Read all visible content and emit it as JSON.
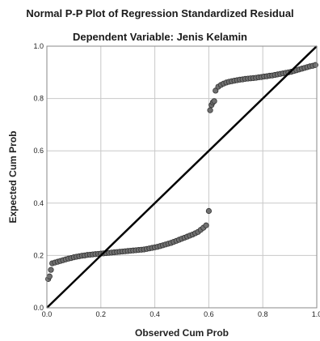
{
  "chart_data": {
    "type": "scatter",
    "title": "Normal P-P Plot of Regression Standardized Residual",
    "subtitle": "Dependent Variable: Jenis Kelamin",
    "xlabel": "Observed Cum Prob",
    "ylabel": "Expected Cum Prob",
    "xlim": [
      0,
      1
    ],
    "ylim": [
      0,
      1
    ],
    "xticks": [
      "0.0",
      "0.2",
      "0.4",
      "0.6",
      "0.8",
      "1.0"
    ],
    "yticks": [
      "0.0",
      "0.2",
      "0.4",
      "0.6",
      "0.8",
      "1.0"
    ],
    "grid": true,
    "reference_line": {
      "from": [
        0,
        0
      ],
      "to": [
        1,
        1
      ]
    },
    "colors": {
      "marker": "#707070",
      "marker_edge": "#333333",
      "line": "#000000",
      "grid": "#c8c8c8"
    },
    "points": [
      [
        0.005,
        0.11
      ],
      [
        0.01,
        0.12
      ],
      [
        0.015,
        0.145
      ],
      [
        0.02,
        0.17
      ],
      [
        0.03,
        0.173
      ],
      [
        0.04,
        0.176
      ],
      [
        0.05,
        0.179
      ],
      [
        0.06,
        0.182
      ],
      [
        0.07,
        0.185
      ],
      [
        0.08,
        0.188
      ],
      [
        0.09,
        0.19
      ],
      [
        0.1,
        0.193
      ],
      [
        0.11,
        0.195
      ],
      [
        0.12,
        0.197
      ],
      [
        0.13,
        0.199
      ],
      [
        0.14,
        0.2
      ],
      [
        0.15,
        0.202
      ],
      [
        0.16,
        0.203
      ],
      [
        0.17,
        0.204
      ],
      [
        0.18,
        0.205
      ],
      [
        0.19,
        0.206
      ],
      [
        0.2,
        0.207
      ],
      [
        0.21,
        0.208
      ],
      [
        0.22,
        0.209
      ],
      [
        0.23,
        0.21
      ],
      [
        0.24,
        0.211
      ],
      [
        0.25,
        0.212
      ],
      [
        0.26,
        0.213
      ],
      [
        0.27,
        0.214
      ],
      [
        0.28,
        0.215
      ],
      [
        0.29,
        0.216
      ],
      [
        0.3,
        0.217
      ],
      [
        0.31,
        0.218
      ],
      [
        0.32,
        0.219
      ],
      [
        0.33,
        0.22
      ],
      [
        0.34,
        0.221
      ],
      [
        0.35,
        0.222
      ],
      [
        0.36,
        0.223
      ],
      [
        0.37,
        0.225
      ],
      [
        0.38,
        0.227
      ],
      [
        0.39,
        0.229
      ],
      [
        0.4,
        0.231
      ],
      [
        0.41,
        0.233
      ],
      [
        0.42,
        0.236
      ],
      [
        0.43,
        0.239
      ],
      [
        0.44,
        0.242
      ],
      [
        0.45,
        0.245
      ],
      [
        0.46,
        0.248
      ],
      [
        0.47,
        0.252
      ],
      [
        0.48,
        0.256
      ],
      [
        0.49,
        0.26
      ],
      [
        0.5,
        0.264
      ],
      [
        0.51,
        0.268
      ],
      [
        0.52,
        0.272
      ],
      [
        0.53,
        0.276
      ],
      [
        0.54,
        0.28
      ],
      [
        0.55,
        0.285
      ],
      [
        0.56,
        0.29
      ],
      [
        0.57,
        0.298
      ],
      [
        0.58,
        0.306
      ],
      [
        0.59,
        0.315
      ],
      [
        0.6,
        0.37
      ],
      [
        0.605,
        0.755
      ],
      [
        0.61,
        0.775
      ],
      [
        0.615,
        0.785
      ],
      [
        0.62,
        0.79
      ],
      [
        0.625,
        0.83
      ],
      [
        0.635,
        0.845
      ],
      [
        0.645,
        0.852
      ],
      [
        0.655,
        0.857
      ],
      [
        0.665,
        0.861
      ],
      [
        0.675,
        0.864
      ],
      [
        0.685,
        0.866
      ],
      [
        0.695,
        0.868
      ],
      [
        0.705,
        0.87
      ],
      [
        0.715,
        0.872
      ],
      [
        0.725,
        0.873
      ],
      [
        0.735,
        0.875
      ],
      [
        0.745,
        0.876
      ],
      [
        0.755,
        0.877
      ],
      [
        0.765,
        0.878
      ],
      [
        0.775,
        0.879
      ],
      [
        0.785,
        0.881
      ],
      [
        0.795,
        0.882
      ],
      [
        0.805,
        0.884
      ],
      [
        0.815,
        0.885
      ],
      [
        0.825,
        0.887
      ],
      [
        0.835,
        0.888
      ],
      [
        0.845,
        0.89
      ],
      [
        0.855,
        0.892
      ],
      [
        0.865,
        0.894
      ],
      [
        0.875,
        0.896
      ],
      [
        0.885,
        0.898
      ],
      [
        0.895,
        0.9
      ],
      [
        0.905,
        0.902
      ],
      [
        0.915,
        0.905
      ],
      [
        0.925,
        0.908
      ],
      [
        0.935,
        0.911
      ],
      [
        0.945,
        0.914
      ],
      [
        0.955,
        0.917
      ],
      [
        0.965,
        0.92
      ],
      [
        0.975,
        0.923
      ],
      [
        0.985,
        0.925
      ],
      [
        0.995,
        0.928
      ]
    ]
  }
}
